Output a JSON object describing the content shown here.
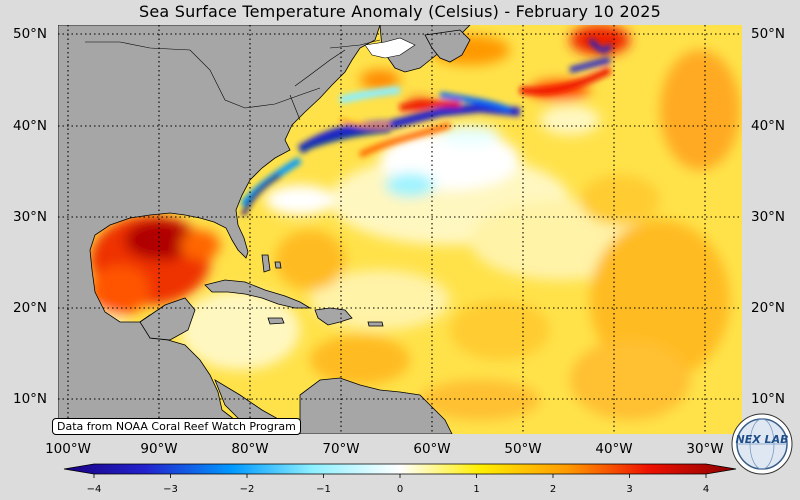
{
  "title": "Sea Surface Temperature Anomaly (Celsius) - February 10 2025",
  "credit": "Data from NOAA Coral Reef Watch Program",
  "map": {
    "lon_range": [
      -102,
      -27
    ],
    "lat_range": [
      6.5,
      51
    ],
    "land_color": "#a6a6a6",
    "ocean_base_color": "#ffe24a",
    "graticule": "dotted"
  },
  "lat_labels": [
    "50°N",
    "40°N",
    "30°N",
    "20°N",
    "10°N"
  ],
  "lon_labels": [
    "100°W",
    "90°W",
    "80°W",
    "70°W",
    "60°W",
    "50°W",
    "40°W",
    "30°W"
  ],
  "colorbar": {
    "ticks": [
      "−4",
      "−3",
      "−2",
      "−1",
      "0",
      "1",
      "2",
      "3",
      "4"
    ],
    "range": [
      -4,
      4
    ],
    "colors": [
      "#1a0082",
      "#2222cc",
      "#0099ff",
      "#8ef0ff",
      "#ffffff",
      "#ffee00",
      "#ff9900",
      "#ee1100",
      "#8a0000"
    ]
  },
  "logo_text": "NEX LAB"
}
